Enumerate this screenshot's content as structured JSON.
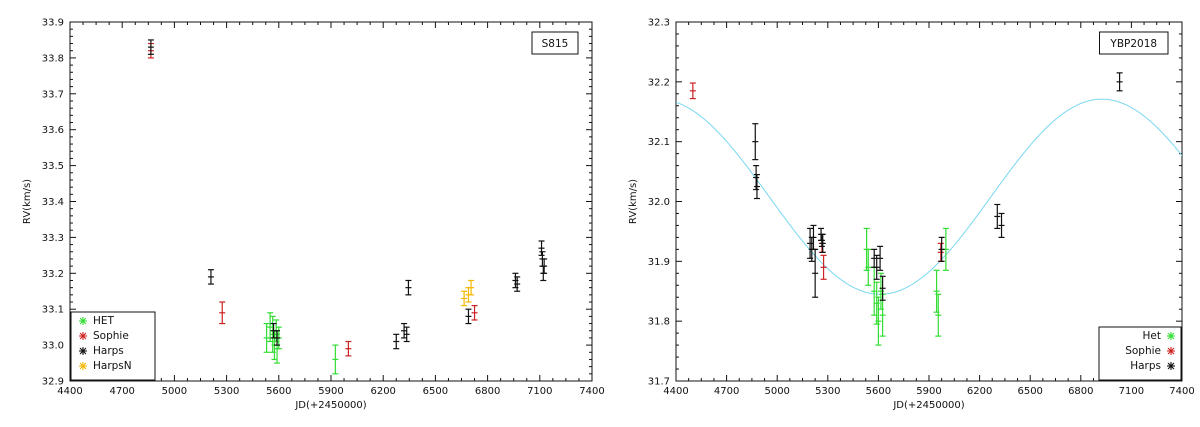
{
  "chart_data": [
    {
      "type": "scatter",
      "id": "left",
      "label_box": "S815",
      "xlabel": "JD(+2450000)",
      "ylabel": "RV(km/s)",
      "xlim": [
        4400,
        7400
      ],
      "ylim": [
        32.9,
        33.9
      ],
      "xticks": [
        4400,
        4700,
        5000,
        5300,
        5600,
        5900,
        6200,
        6500,
        6800,
        7100,
        7400
      ],
      "yticks": [
        32.9,
        33.0,
        33.1,
        33.2,
        33.3,
        33.4,
        33.5,
        33.6,
        33.7,
        33.8,
        33.9
      ],
      "ytick_decimals": 1,
      "legend_position": "bottom-left",
      "legend_marker_side": "left",
      "series": [
        {
          "name": "HET",
          "color": "#33dd33",
          "points": [
            {
              "x": 5530,
              "y": 33.02,
              "err": 0.04
            },
            {
              "x": 5550,
              "y": 33.05,
              "err": 0.04
            },
            {
              "x": 5565,
              "y": 33.03,
              "err": 0.05
            },
            {
              "x": 5575,
              "y": 33.0,
              "err": 0.04
            },
            {
              "x": 5585,
              "y": 33.04,
              "err": 0.03
            },
            {
              "x": 5590,
              "y": 32.99,
              "err": 0.04
            },
            {
              "x": 5600,
              "y": 33.02,
              "err": 0.03
            },
            {
              "x": 5925,
              "y": 32.96,
              "err": 0.04
            }
          ]
        },
        {
          "name": "Sophie",
          "color": "#cc2222",
          "points": [
            {
              "x": 4865,
              "y": 33.82,
              "err": 0.02
            },
            {
              "x": 5275,
              "y": 33.09,
              "err": 0.03
            },
            {
              "x": 6000,
              "y": 32.99,
              "err": 0.02
            },
            {
              "x": 6725,
              "y": 33.09,
              "err": 0.02
            }
          ]
        },
        {
          "name": "Harps",
          "color": "#111111",
          "points": [
            {
              "x": 4865,
              "y": 33.83,
              "err": 0.02
            },
            {
              "x": 5210,
              "y": 33.19,
              "err": 0.02
            },
            {
              "x": 5570,
              "y": 33.04,
              "err": 0.02
            },
            {
              "x": 5590,
              "y": 33.02,
              "err": 0.02
            },
            {
              "x": 6275,
              "y": 33.01,
              "err": 0.02
            },
            {
              "x": 6320,
              "y": 33.04,
              "err": 0.02
            },
            {
              "x": 6335,
              "y": 33.03,
              "err": 0.02
            },
            {
              "x": 6345,
              "y": 33.16,
              "err": 0.02
            },
            {
              "x": 6690,
              "y": 33.08,
              "err": 0.02
            },
            {
              "x": 6960,
              "y": 33.18,
              "err": 0.02
            },
            {
              "x": 6970,
              "y": 33.17,
              "err": 0.02
            },
            {
              "x": 7110,
              "y": 33.27,
              "err": 0.02
            },
            {
              "x": 7115,
              "y": 33.24,
              "err": 0.02
            },
            {
              "x": 7120,
              "y": 33.2,
              "err": 0.02
            },
            {
              "x": 7125,
              "y": 33.22,
              "err": 0.02
            }
          ]
        },
        {
          "name": "HarpsN",
          "color": "#f5b800",
          "points": [
            {
              "x": 6665,
              "y": 33.13,
              "err": 0.02
            },
            {
              "x": 6690,
              "y": 33.14,
              "err": 0.02
            },
            {
              "x": 6705,
              "y": 33.16,
              "err": 0.02
            }
          ]
        }
      ]
    },
    {
      "type": "scatter",
      "id": "right",
      "label_box": "YBP2018",
      "xlabel": "JD(+2450000)",
      "ylabel": "RV(km/s)",
      "xlim": [
        4400,
        7400
      ],
      "ylim": [
        31.7,
        32.3
      ],
      "xticks": [
        4400,
        4700,
        5000,
        5300,
        5600,
        5900,
        6200,
        6500,
        6800,
        7100,
        7400
      ],
      "yticks": [
        31.7,
        31.8,
        31.9,
        32.0,
        32.1,
        32.2,
        32.3
      ],
      "ytick_decimals": 1,
      "legend_position": "bottom-right",
      "legend_marker_side": "right",
      "fit_curve": {
        "color": "#7ad7f0",
        "function": "sine",
        "mean": 32.008,
        "amplitude": 0.163,
        "period": 2630,
        "peak_x": 6925
      },
      "series": [
        {
          "name": "Het",
          "color": "#33dd33",
          "points": [
            {
              "x": 5530,
              "y": 31.92,
              "err": 0.035
            },
            {
              "x": 5540,
              "y": 31.89,
              "err": 0.03
            },
            {
              "x": 5575,
              "y": 31.85,
              "err": 0.04
            },
            {
              "x": 5590,
              "y": 31.83,
              "err": 0.035
            },
            {
              "x": 5600,
              "y": 31.8,
              "err": 0.04
            },
            {
              "x": 5615,
              "y": 31.85,
              "err": 0.03
            },
            {
              "x": 5625,
              "y": 31.81,
              "err": 0.035
            },
            {
              "x": 5945,
              "y": 31.85,
              "err": 0.035
            },
            {
              "x": 5955,
              "y": 31.81,
              "err": 0.035
            },
            {
              "x": 6000,
              "y": 31.92,
              "err": 0.035
            }
          ]
        },
        {
          "name": "Sophie",
          "color": "#cc2222",
          "points": [
            {
              "x": 4500,
              "y": 32.185,
              "err": 0.013
            },
            {
              "x": 5265,
              "y": 31.93,
              "err": 0.015
            },
            {
              "x": 5275,
              "y": 31.89,
              "err": 0.02
            },
            {
              "x": 5970,
              "y": 31.915,
              "err": 0.015
            }
          ]
        },
        {
          "name": "Harps",
          "color": "#111111",
          "points": [
            {
              "x": 4870,
              "y": 32.1,
              "err": 0.03
            },
            {
              "x": 4875,
              "y": 32.04,
              "err": 0.02
            },
            {
              "x": 4880,
              "y": 32.025,
              "err": 0.02
            },
            {
              "x": 5195,
              "y": 31.93,
              "err": 0.025
            },
            {
              "x": 5205,
              "y": 31.92,
              "err": 0.02
            },
            {
              "x": 5215,
              "y": 31.94,
              "err": 0.02
            },
            {
              "x": 5225,
              "y": 31.88,
              "err": 0.04
            },
            {
              "x": 5260,
              "y": 31.945,
              "err": 0.01
            },
            {
              "x": 5265,
              "y": 31.935,
              "err": 0.01
            },
            {
              "x": 5270,
              "y": 31.93,
              "err": 0.015
            },
            {
              "x": 5575,
              "y": 31.905,
              "err": 0.015
            },
            {
              "x": 5590,
              "y": 31.89,
              "err": 0.02
            },
            {
              "x": 5610,
              "y": 31.905,
              "err": 0.02
            },
            {
              "x": 5625,
              "y": 31.855,
              "err": 0.02
            },
            {
              "x": 5975,
              "y": 31.92,
              "err": 0.02
            },
            {
              "x": 6305,
              "y": 31.975,
              "err": 0.02
            },
            {
              "x": 6330,
              "y": 31.96,
              "err": 0.02
            },
            {
              "x": 7030,
              "y": 32.2,
              "err": 0.015
            }
          ]
        }
      ]
    }
  ]
}
